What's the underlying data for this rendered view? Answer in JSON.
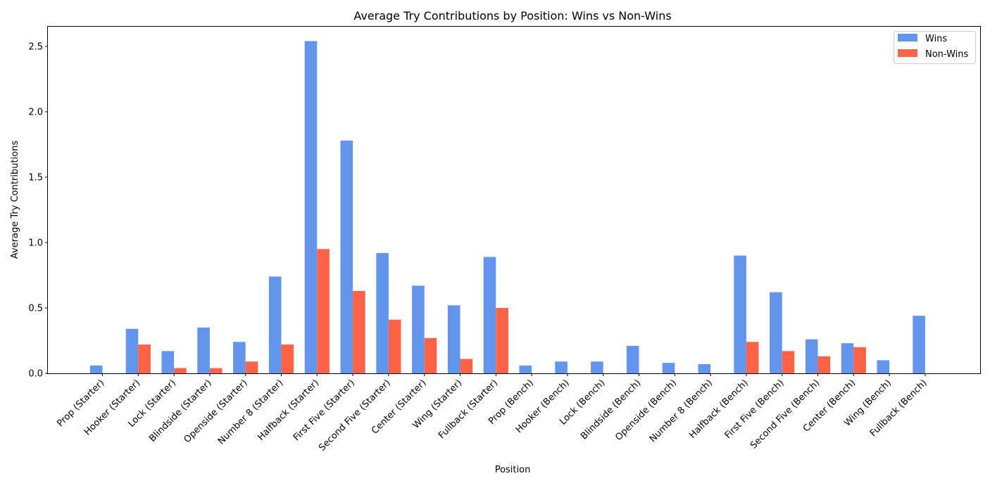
{
  "chart_data": {
    "type": "bar",
    "title": "Average Try Contributions by Position: Wins vs Non-Wins",
    "xlabel": "Position",
    "ylabel": "Average Try Contributions",
    "ylim": [
      0,
      2.65
    ],
    "yticks": [
      "0.0",
      "0.5",
      "1.0",
      "1.5",
      "2.0",
      "2.5"
    ],
    "legend_position": "top-right",
    "grid": false,
    "categories": [
      "Prop (Starter)",
      "Hooker (Starter)",
      "Lock (Starter)",
      "Blindside (Starter)",
      "Openside (Starter)",
      "Number 8 (Starter)",
      "Halfback (Starter)",
      "First Five (Starter)",
      "Second Five (Starter)",
      "Center (Starter)",
      "Wing (Starter)",
      "Fullback (Starter)",
      "Prop (Bench)",
      "Hooker (Bench)",
      "Lock (Bench)",
      "Blindside (Bench)",
      "Openside (Bench)",
      "Number 8 (Bench)",
      "Halfback (Bench)",
      "First Five (Bench)",
      "Second Five (Bench)",
      "Center (Bench)",
      "Wing (Bench)",
      "Fullback (Bench)"
    ],
    "series": [
      {
        "name": "Wins",
        "color": "#6495ed",
        "values": [
          0.06,
          0.34,
          0.17,
          0.35,
          0.24,
          0.74,
          2.54,
          1.78,
          0.92,
          0.67,
          0.52,
          0.89,
          0.06,
          0.09,
          0.09,
          0.21,
          0.08,
          0.07,
          0.9,
          0.62,
          0.26,
          0.23,
          0.1,
          0.44
        ]
      },
      {
        "name": "Non-Wins",
        "color": "#ff6347",
        "values": [
          0.0,
          0.22,
          0.04,
          0.04,
          0.09,
          0.22,
          0.95,
          0.63,
          0.41,
          0.27,
          0.11,
          0.5,
          0.0,
          0.0,
          0.0,
          0.0,
          0.0,
          0.0,
          0.24,
          0.17,
          0.13,
          0.2,
          0.0,
          0.0
        ]
      }
    ]
  }
}
